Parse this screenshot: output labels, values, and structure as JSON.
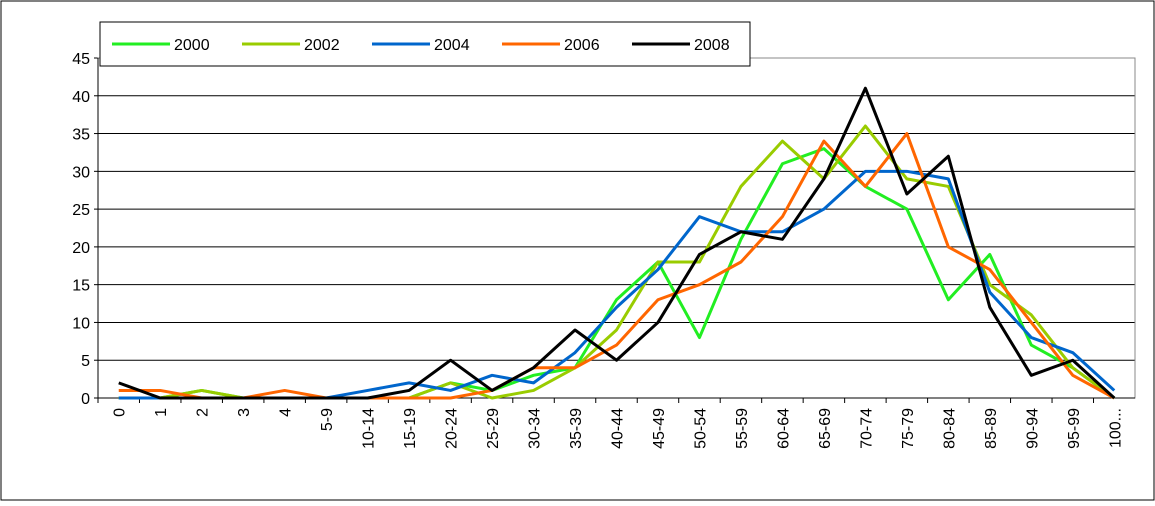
{
  "chart_data": {
    "type": "line",
    "categories": [
      "0",
      "1",
      "2",
      "3",
      "4",
      "5-9",
      "10-14",
      "15-19",
      "20-24",
      "25-29",
      "30-34",
      "35-39",
      "40-44",
      "45-49",
      "50-54",
      "55-59",
      "60-64",
      "65-69",
      "70-74",
      "75-79",
      "80-84",
      "85-89",
      "90-94",
      "95-99",
      "100..."
    ],
    "series": [
      {
        "name": "2000",
        "color": "#22ee22",
        "values": [
          0,
          0,
          1,
          0,
          0,
          0,
          0,
          0,
          2,
          1,
          3,
          4,
          13,
          18,
          8,
          21,
          31,
          33,
          28,
          25,
          13,
          19,
          7,
          4,
          0
        ]
      },
      {
        "name": "2002",
        "color": "#99cc00",
        "values": [
          0,
          0,
          1,
          0,
          0,
          0,
          0,
          0,
          2,
          0,
          1,
          4,
          9,
          18,
          18,
          28,
          34,
          29,
          36,
          29,
          28,
          15,
          11,
          4,
          0
        ]
      },
      {
        "name": "2004",
        "color": "#0066cc",
        "values": [
          0,
          0,
          0,
          0,
          0,
          0,
          1,
          2,
          1,
          3,
          2,
          6,
          12,
          17,
          24,
          22,
          22,
          25,
          30,
          30,
          29,
          14,
          8,
          6,
          1
        ]
      },
      {
        "name": "2006",
        "color": "#ff6600",
        "values": [
          1,
          1,
          0,
          0,
          1,
          0,
          0,
          0,
          0,
          1,
          4,
          4,
          7,
          13,
          15,
          18,
          24,
          34,
          28,
          35,
          20,
          17,
          10,
          3,
          0
        ]
      },
      {
        "name": "2008",
        "color": "#000000",
        "values": [
          2,
          0,
          0,
          0,
          0,
          0,
          0,
          1,
          5,
          1,
          4,
          9,
          5,
          10,
          19,
          22,
          21,
          29,
          41,
          27,
          32,
          12,
          3,
          5,
          0
        ]
      }
    ],
    "ylim": [
      0,
      45
    ],
    "yticks": [
      0,
      5,
      10,
      15,
      20,
      25,
      30,
      35,
      40,
      45
    ],
    "grid": true,
    "legend": "top-left"
  }
}
